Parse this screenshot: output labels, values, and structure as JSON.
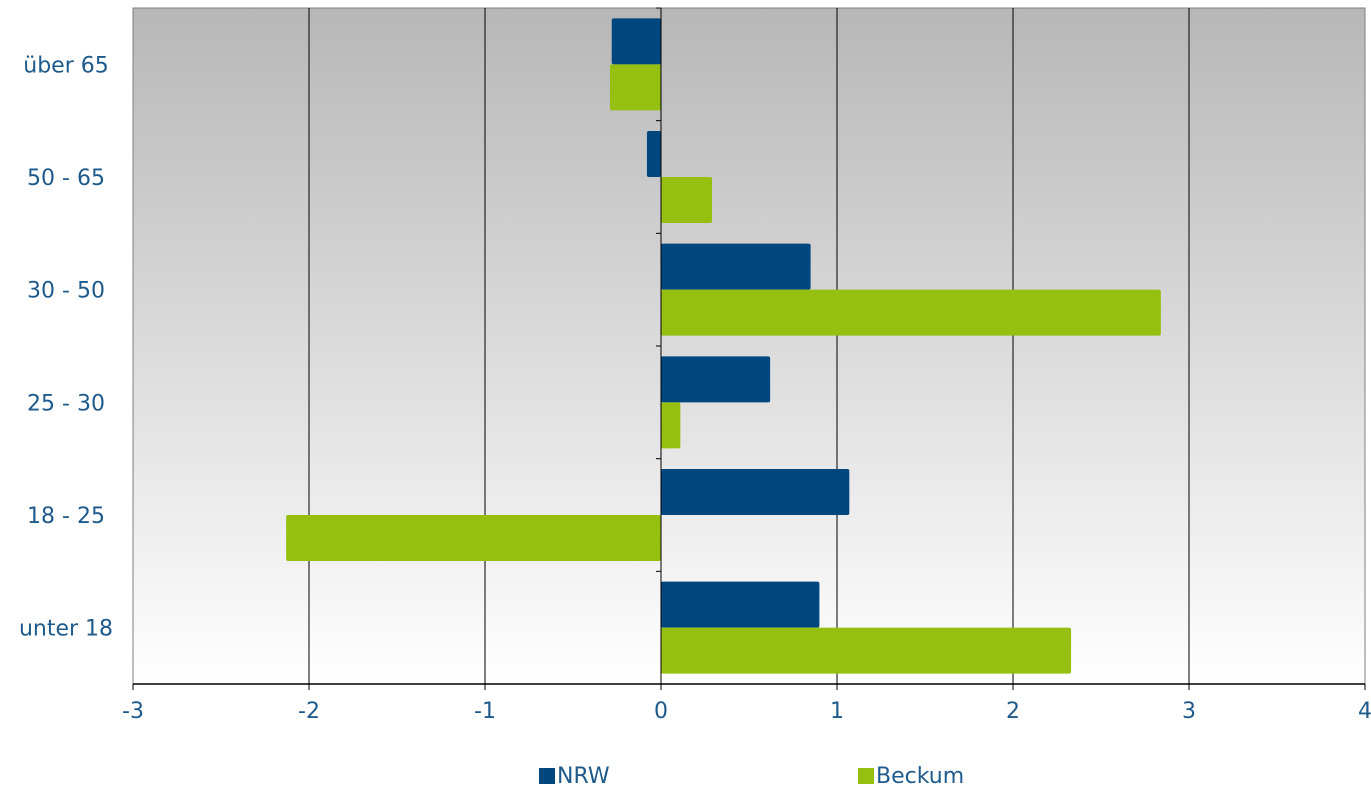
{
  "chart_data": {
    "type": "bar",
    "orientation": "horizontal",
    "categories": [
      "unter 18",
      "18 - 25",
      "25 - 30",
      "30 - 50",
      "50 - 65",
      "über  65"
    ],
    "series": [
      {
        "name": "NRW",
        "color": "#00467f",
        "values": [
          0.9,
          1.07,
          0.62,
          0.85,
          -0.08,
          -0.28
        ]
      },
      {
        "name": "Beckum",
        "color": "#95c011",
        "values": [
          2.33,
          -2.13,
          0.11,
          2.84,
          0.29,
          -0.29
        ]
      }
    ],
    "xlim": [
      -3,
      4
    ],
    "xticks": [
      -3,
      -2,
      -1,
      0,
      1,
      2,
      3,
      4
    ],
    "xtick_labels": [
      "-3",
      "-2",
      "-1",
      "0",
      "1",
      "2",
      "3",
      "4"
    ],
    "grid": true,
    "legend_position": "bottom",
    "colors": {
      "plot_gradient_top": "#b7b7b7",
      "plot_gradient_bottom": "#ffffff",
      "text": "#1f5a8c"
    }
  }
}
